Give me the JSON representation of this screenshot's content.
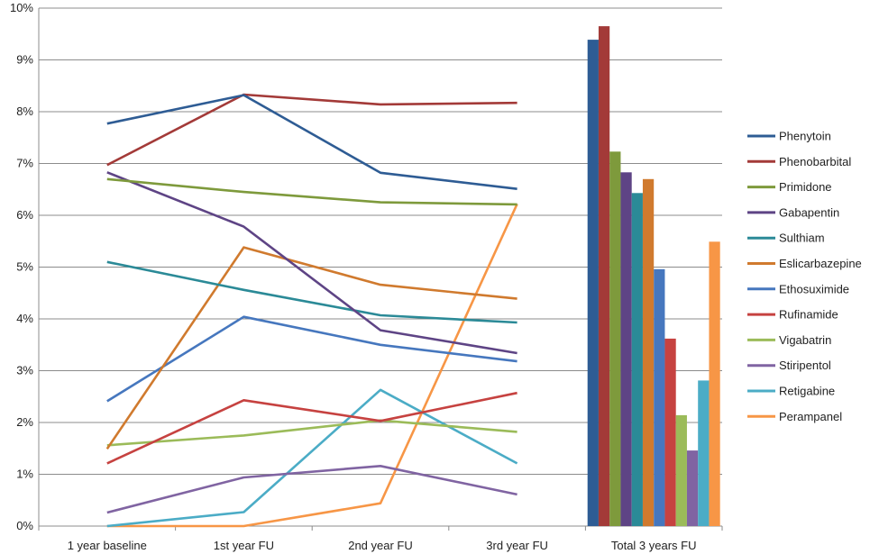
{
  "chart_data": {
    "type": "line",
    "title": "",
    "xlabel": "",
    "ylabel": "",
    "ylim": [
      0,
      10
    ],
    "y_ticks": [
      "0%",
      "1%",
      "2%",
      "3%",
      "4%",
      "5%",
      "6%",
      "7%",
      "8%",
      "9%",
      "10%"
    ],
    "grid": true,
    "legend_position": "right",
    "categories": [
      "1 year baseline",
      "1st year FU",
      "2nd year FU",
      "3rd year FU",
      "Total 3 years FU"
    ],
    "line_categories": [
      "1 year baseline",
      "1st year FU",
      "2nd year FU",
      "3rd year FU"
    ],
    "bar_category": "Total 3 years FU",
    "series": [
      {
        "name": "Phenytoin",
        "color": "#2E5C94",
        "line": [
          7.77,
          8.32,
          6.82,
          6.51
        ],
        "total": 9.39
      },
      {
        "name": "Phenobarbital",
        "color": "#A33A38",
        "line": [
          6.97,
          8.33,
          8.14,
          8.17
        ],
        "total": 9.65
      },
      {
        "name": "Primidone",
        "color": "#7E9A3C",
        "line": [
          6.7,
          6.45,
          6.25,
          6.21
        ],
        "total": 7.23
      },
      {
        "name": "Gabapentin",
        "color": "#5E4485",
        "line": [
          6.83,
          5.78,
          3.78,
          3.34
        ],
        "total": 6.83
      },
      {
        "name": "Sulthiam",
        "color": "#2B8A97",
        "line": [
          5.1,
          4.56,
          4.07,
          3.93
        ],
        "total": 6.43
      },
      {
        "name": "Eslicarbazepine",
        "color": "#D07A2E",
        "line": [
          1.49,
          5.38,
          4.66,
          4.39
        ],
        "total": 6.7
      },
      {
        "name": "Ethosuximide",
        "color": "#4677BE",
        "line": [
          2.41,
          4.04,
          3.5,
          3.18
        ],
        "total": 4.96
      },
      {
        "name": "Rufinamide",
        "color": "#C64240",
        "line": [
          1.21,
          2.43,
          2.03,
          2.57
        ],
        "total": 3.62
      },
      {
        "name": "Vigabatrin",
        "color": "#9BBB59",
        "line": [
          1.56,
          1.75,
          2.04,
          1.82
        ],
        "total": 2.14
      },
      {
        "name": "Stiripentol",
        "color": "#8064A2",
        "line": [
          0.26,
          0.94,
          1.16,
          0.61
        ],
        "total": 1.46
      },
      {
        "name": "Retigabine",
        "color": "#4BACC6",
        "line": [
          0.0,
          0.27,
          2.63,
          1.21
        ],
        "total": 2.81
      },
      {
        "name": "Perampanel",
        "color": "#F79646",
        "line": [
          0.0,
          0.0,
          0.44,
          6.22
        ],
        "total": 5.49
      }
    ]
  }
}
